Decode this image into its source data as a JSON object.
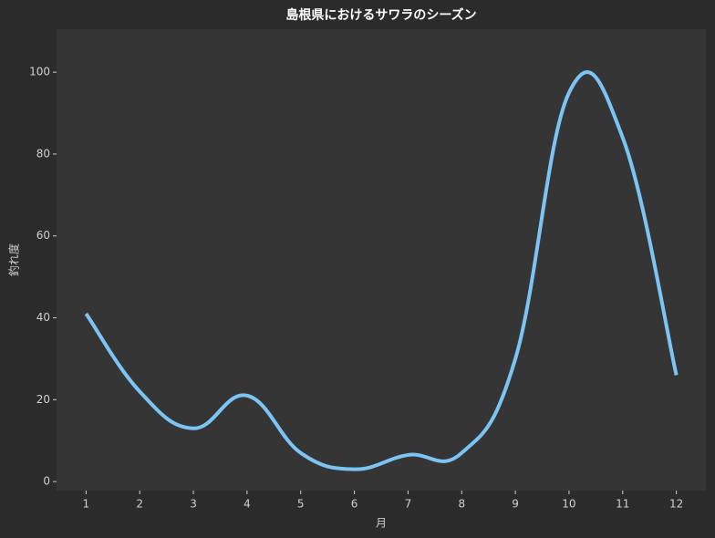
{
  "chart_data": {
    "type": "line",
    "title": "島根県におけるサワラのシーズン",
    "x_label": "月",
    "y_label": "釣れ度",
    "x": [
      1,
      2,
      3,
      4,
      5,
      6,
      7,
      8,
      9,
      10,
      11,
      12
    ],
    "series": [
      {
        "name": "釣れ度",
        "color": "#7cc4f4",
        "values": [
          41,
          22,
          13,
          21,
          7,
          3,
          6.5,
          7,
          30,
          95,
          84,
          26
        ]
      }
    ],
    "xlim": [
      0.45,
      12.55
    ],
    "xticks": [
      1,
      2,
      3,
      4,
      5,
      6,
      7,
      8,
      9,
      10,
      11,
      12
    ],
    "ylim": [
      -2.2,
      110.5
    ],
    "yticks": [
      0,
      20,
      40,
      60,
      80,
      100
    ],
    "grid": false
  }
}
